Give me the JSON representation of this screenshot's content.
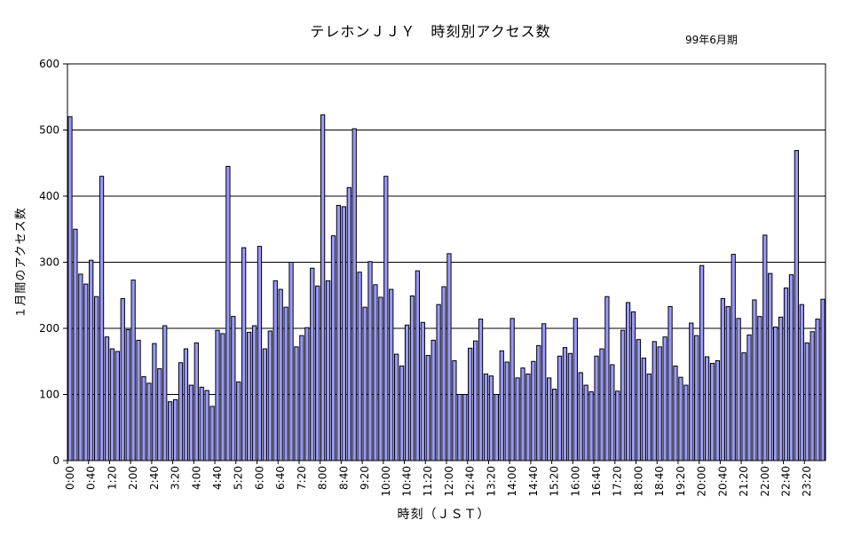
{
  "chart_data": {
    "type": "bar",
    "title": "テレホンＪＪＹ　時刻別アクセス数",
    "subtitle": "99年6月期",
    "xlabel": "時刻（ＪＳＴ）",
    "ylabel": "１月間のアクセス数",
    "ylim": [
      0,
      600
    ],
    "yticks": [
      0,
      100,
      200,
      300,
      400,
      500,
      600
    ],
    "grid": true,
    "bar_color": "#9999ff",
    "bar_stroke": "#000000",
    "tick_labels": [
      "0:00",
      "0:40",
      "1:20",
      "2:00",
      "2:40",
      "3:20",
      "4:00",
      "4:40",
      "5:20",
      "6:00",
      "6:40",
      "7:20",
      "8:00",
      "8:40",
      "9:20",
      "10:00",
      "10:40",
      "11:20",
      "12:00",
      "12:40",
      "13:20",
      "14:00",
      "14:40",
      "15:20",
      "16:00",
      "16:40",
      "17:20",
      "18:00",
      "18:40",
      "19:20",
      "20:00",
      "20:40",
      "21:20",
      "22:00",
      "22:40",
      "23:20"
    ],
    "values": [
      520,
      350,
      282,
      267,
      303,
      248,
      430,
      187,
      169,
      165,
      245,
      198,
      273,
      182,
      127,
      117,
      177,
      139,
      204,
      89,
      92,
      148,
      169,
      114,
      178,
      111,
      106,
      82,
      197,
      192,
      445,
      218,
      119,
      322,
      194,
      204,
      324,
      169,
      196,
      272,
      259,
      232,
      300,
      172,
      189,
      201,
      291,
      264,
      523,
      272,
      340,
      386,
      384,
      413,
      502,
      285,
      232,
      301,
      266,
      247,
      430,
      259,
      161,
      143,
      205,
      249,
      287,
      209,
      159,
      182,
      236,
      263,
      313,
      151,
      100,
      100,
      170,
      181,
      214,
      131,
      128,
      100,
      166,
      149,
      215,
      125,
      140,
      131,
      150,
      174,
      207,
      125,
      108,
      158,
      171,
      162,
      215,
      133,
      114,
      104,
      158,
      169,
      248,
      145,
      105,
      197,
      239,
      225,
      183,
      155,
      131,
      180,
      172,
      187,
      233,
      143,
      126,
      114,
      208,
      189,
      295,
      157,
      147,
      151,
      245,
      233,
      312,
      215,
      163,
      190,
      243,
      218,
      341,
      283,
      202,
      217,
      261,
      281,
      469,
      236,
      178,
      195,
      214,
      244
    ]
  }
}
